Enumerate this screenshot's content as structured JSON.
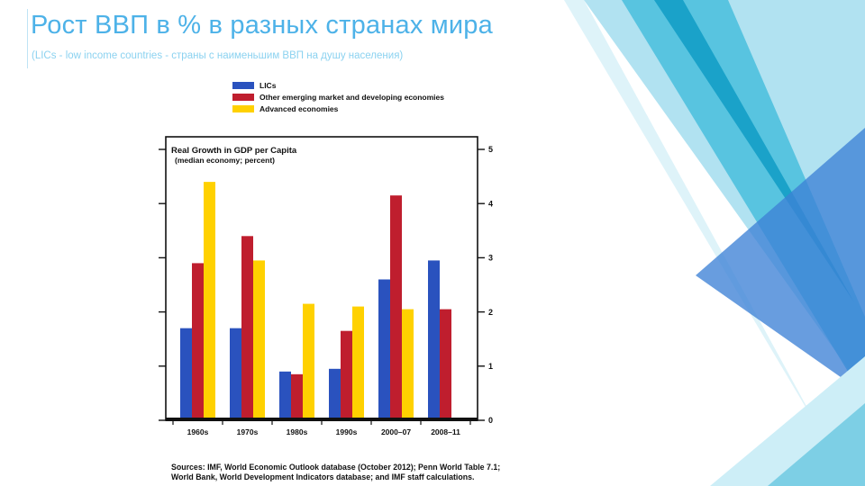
{
  "slide": {
    "title": "Рост ВВП в % в разных странах мира",
    "subtitle": "(LICs - low income countries - страны с наименьшим ВВП на душу населения)"
  },
  "accent_colors": {
    "title_blue": "#4db2e8",
    "subtitle_blue": "#8bd2f0",
    "decor_light_cyan": "#a8dff0",
    "decor_teal": "#49bedd",
    "decor_dark_teal": "#0f9cc4",
    "decor_blue": "#3e82d6",
    "decor_pale": "#cdeef7"
  },
  "chart_data": {
    "type": "bar",
    "title": "Real Growth in GDP per Capita",
    "subtitle": "(median economy; percent)",
    "legend_position": "top",
    "grid": false,
    "categories": [
      "1960s",
      "1970s",
      "1980s",
      "1990s",
      "2000–07",
      "2008–11"
    ],
    "series": [
      {
        "name": "LICs",
        "color": "#2a52be",
        "values": [
          1.7,
          1.7,
          0.9,
          0.95,
          2.6,
          2.95
        ]
      },
      {
        "name": "Other emerging market and developing economies",
        "color": "#bf1e2e",
        "values": [
          2.9,
          3.4,
          0.85,
          1.65,
          4.15,
          2.05
        ]
      },
      {
        "name": "Advanced economies",
        "color": "#ffd100",
        "values": [
          4.4,
          2.95,
          2.15,
          2.1,
          2.05,
          0
        ]
      }
    ],
    "ylim": [
      0,
      5
    ],
    "yticks": [
      0,
      1,
      2,
      3,
      4,
      5
    ],
    "sources_line": "Sources: IMF, World Economic Outlook database (October 2012); Penn World Table 7.1; World Bank, World Development Indicators database; and IMF staff calculations."
  }
}
